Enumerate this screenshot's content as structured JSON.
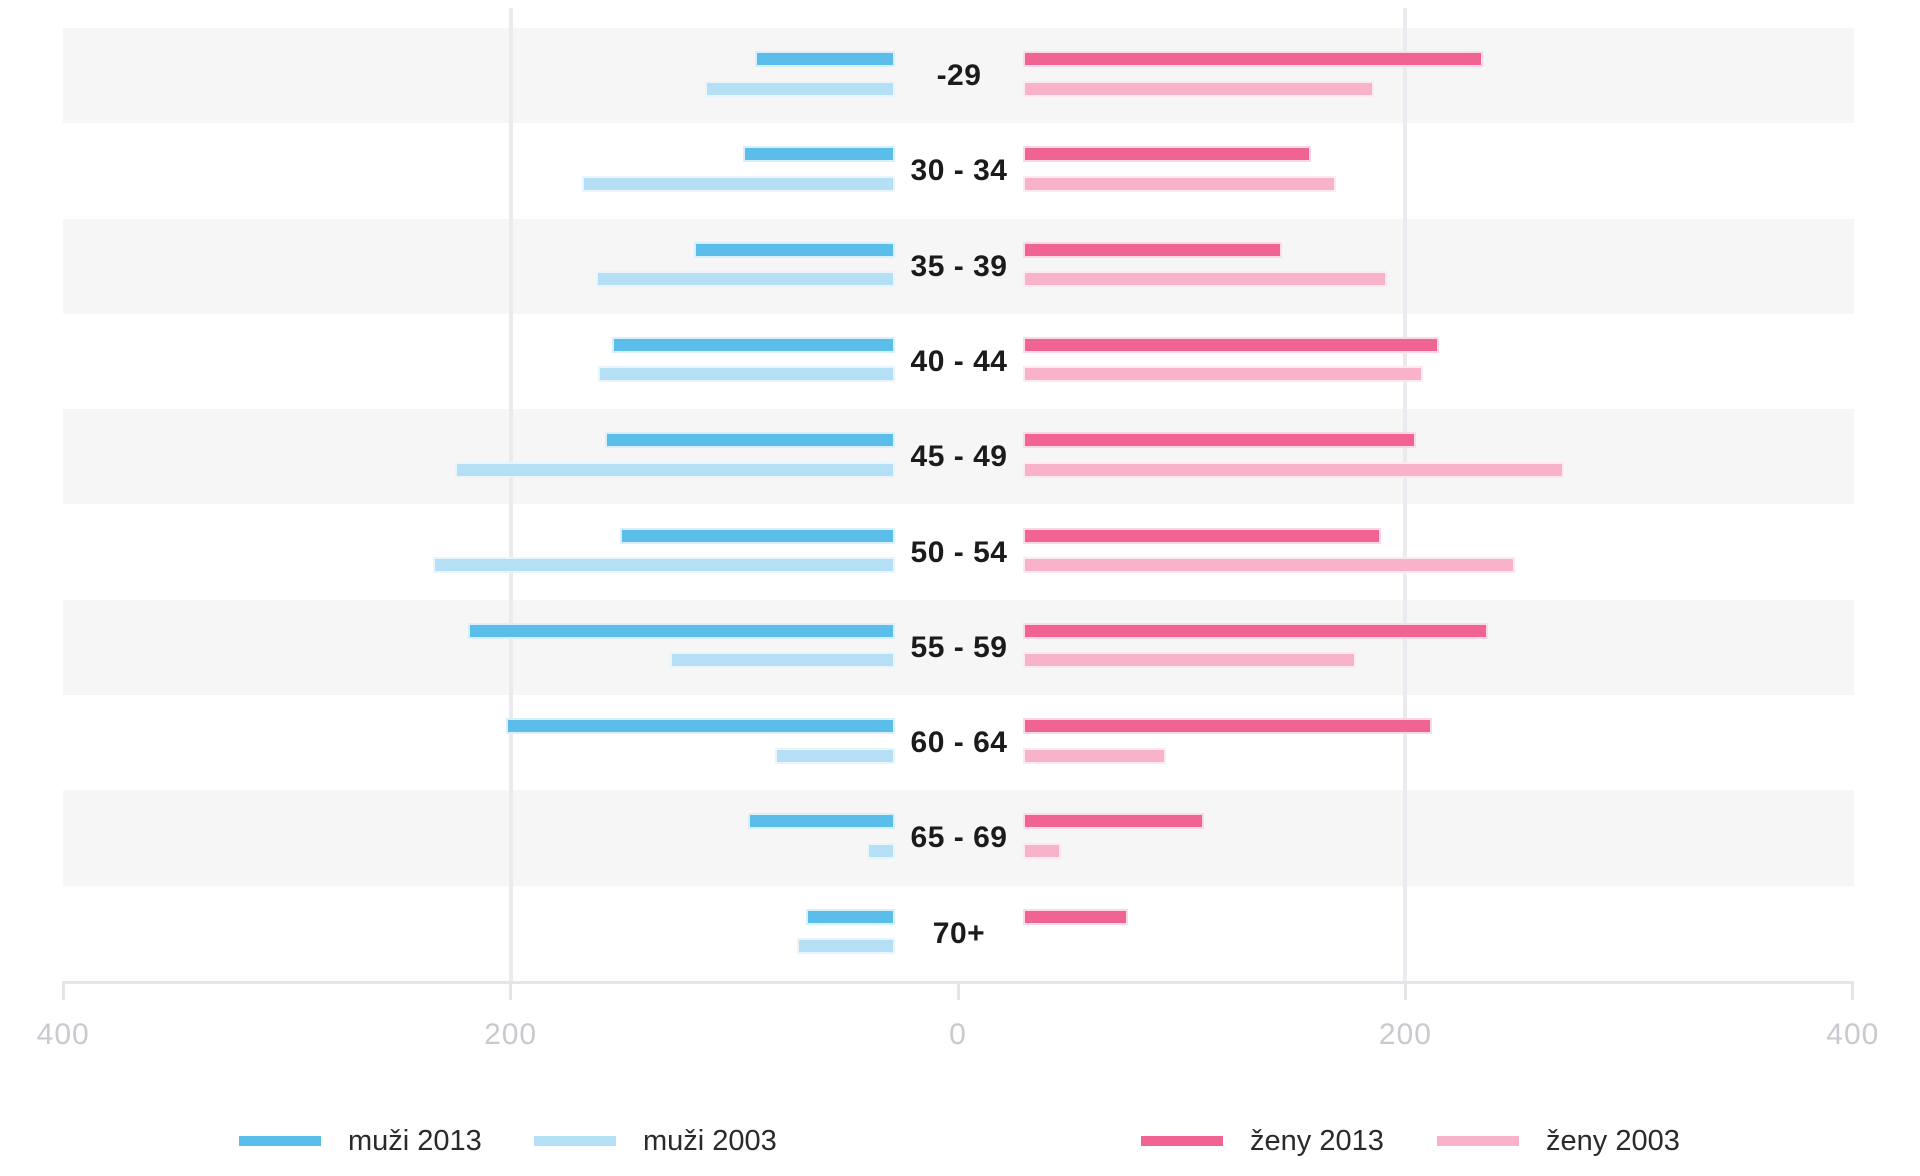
{
  "chart_data": {
    "type": "bar",
    "variant": "population_pyramid",
    "title": "",
    "categories": [
      "-29",
      "30 - 34",
      "35 - 39",
      "40 - 44",
      "45 - 49",
      "50 - 54",
      "55 - 59",
      "60 - 64",
      "65 - 69",
      "70+"
    ],
    "series": [
      {
        "id": "muzi-2013",
        "name": "muži 2013",
        "side": "left",
        "shade": "dark",
        "color": "#5bbde9",
        "halo": "#d9effb",
        "values": [
          90,
          95,
          117,
          154,
          157,
          150,
          218,
          201,
          93,
          67
        ]
      },
      {
        "id": "muzi-2003",
        "name": "muži 2003",
        "side": "left",
        "shade": "light",
        "color": "#b5dff4",
        "halo": "#e8f5fc",
        "values": [
          112,
          167,
          161,
          160,
          224,
          234,
          128,
          81,
          40,
          71
        ]
      },
      {
        "id": "zeny-2013",
        "name": "ženy 2013",
        "side": "right",
        "shade": "dark",
        "color": "#f06392",
        "halo": "#fcd9e5",
        "values": [
          234,
          157,
          144,
          214,
          204,
          188,
          236,
          211,
          109,
          75
        ]
      },
      {
        "id": "zeny-2003",
        "name": "ženy 2003",
        "side": "right",
        "shade": "light",
        "color": "#f8b3cb",
        "halo": "#fde9f1",
        "values": [
          185,
          168,
          191,
          207,
          270,
          248,
          177,
          92,
          45,
          null
        ]
      }
    ],
    "x_axis": {
      "tick_labels": [
        "400",
        "200",
        "0",
        "200",
        "400"
      ],
      "tick_values": [
        -400,
        -200,
        0,
        200,
        400
      ],
      "max_each_side": 400,
      "gridlines_at_values": [
        -200,
        200
      ]
    },
    "legend": {
      "position": "bottom",
      "items": [
        "muži 2013",
        "muži 2003",
        "ženy 2013",
        "ženy 2003"
      ]
    },
    "colors": {
      "stripe": "#f6f6f7",
      "gridline": "#eaeaef",
      "axis": "#e4e4e9",
      "tick_label": "#c9c9cf",
      "age_label": "#1b1b1b",
      "legend_text": "#2a2a2a",
      "background": "#ffffff"
    }
  }
}
